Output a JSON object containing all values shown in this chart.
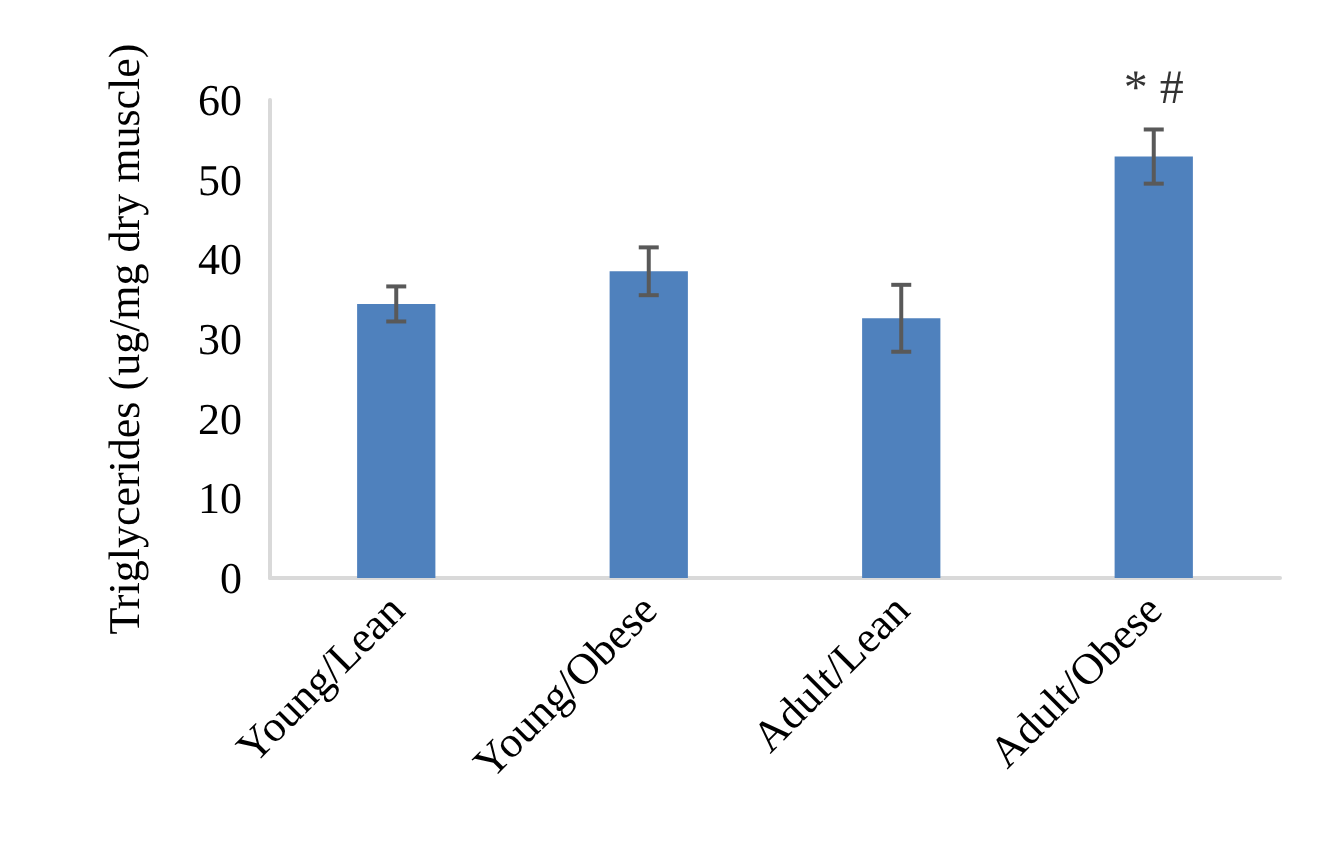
{
  "chart_data": {
    "type": "bar",
    "ylabel": "Triglycerides (ug/mg dry muscle)",
    "categories": [
      "Young/Lean",
      "Young/Obese",
      "Adult/Lean",
      "Adult/Obese"
    ],
    "values": [
      34.4,
      38.5,
      32.6,
      52.9
    ],
    "errors": [
      2.2,
      3.0,
      4.2,
      3.4
    ],
    "color": "#4f81bd",
    "ylim": [
      0,
      60
    ],
    "yticks": [
      0,
      10,
      20,
      30,
      40,
      50,
      60
    ],
    "grid": false,
    "annotations": [
      {
        "text": "* #",
        "x": "Adult/Obese",
        "y": 56.3
      }
    ]
  }
}
